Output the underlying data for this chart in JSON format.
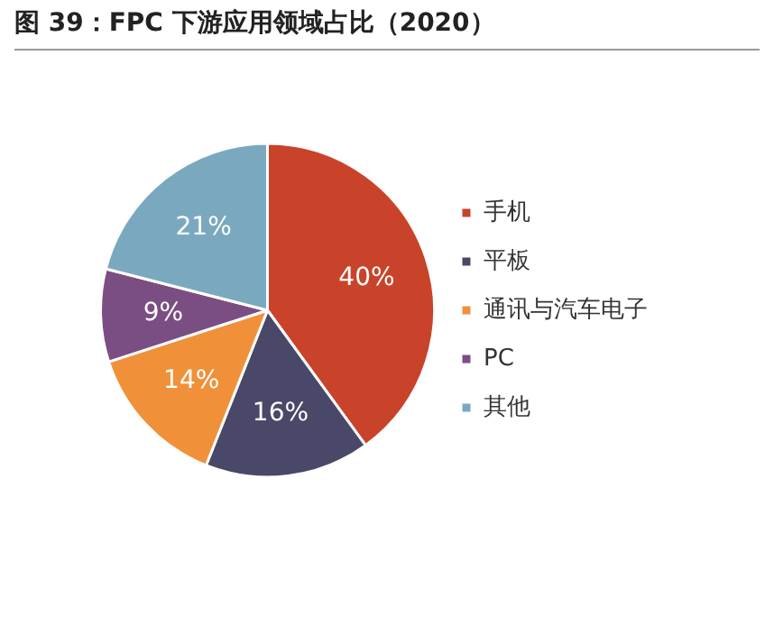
{
  "chart_data": {
    "type": "pie",
    "title": "图 39：FPC 下游应用领域占比（2020）",
    "categories": [
      "手机",
      "平板",
      "通讯与汽车电子",
      "PC",
      "其他"
    ],
    "values": [
      40,
      16,
      14,
      9,
      21
    ],
    "colors": [
      "#c9432a",
      "#4a4868",
      "#f0913a",
      "#7b4e83",
      "#7aa9bf"
    ],
    "value_labels": [
      "40%",
      "16%",
      "14%",
      "9%",
      "21%"
    ],
    "legend": "right"
  }
}
